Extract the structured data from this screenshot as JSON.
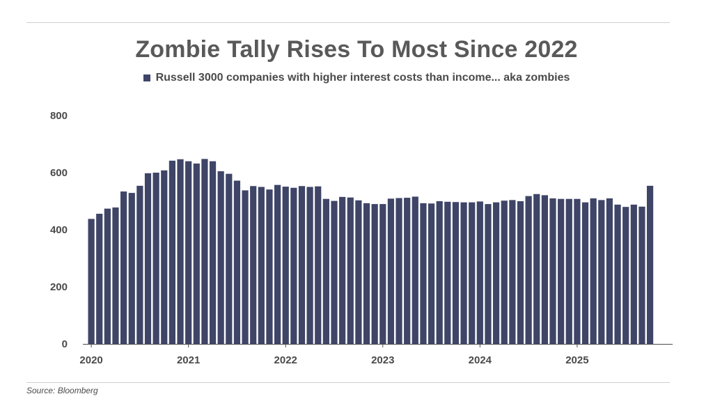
{
  "colors": {
    "bar": "#3f4567",
    "axis": "#4a4a4a",
    "rule": "#cfcfcf"
  },
  "source_label": "Source: Bloomberg",
  "chart_data": {
    "type": "bar",
    "title": "Zombie Tally Rises To Most Since 2022",
    "legend_position": "top-center",
    "grid": false,
    "series": [
      {
        "name": "Russell 3000 companies with higher interest costs than income... aka zombies",
        "values": [
          438,
          456,
          474,
          478,
          534,
          529,
          554,
          598,
          600,
          608,
          642,
          647,
          640,
          632,
          648,
          640,
          605,
          596,
          572,
          538,
          553,
          550,
          541,
          557,
          551,
          547,
          553,
          550,
          552,
          508,
          501,
          515,
          513,
          503,
          493,
          490,
          490,
          509,
          511,
          512,
          516,
          493,
          492,
          500,
          498,
          497,
          496,
          496,
          499,
          490,
          496,
          502,
          504,
          500,
          518,
          525,
          521,
          510,
          508,
          508,
          508,
          496,
          510,
          504,
          510,
          488,
          480,
          488,
          481,
          554
        ]
      }
    ],
    "x_start": "2020-01",
    "x_frequency": "monthly",
    "x_tick_labels": [
      "2020",
      "2021",
      "2022",
      "2023",
      "2024",
      "2025"
    ],
    "y_ticks": [
      0,
      200,
      400,
      600,
      800
    ],
    "ylim": [
      0,
      800
    ],
    "xlabel": "",
    "ylabel": ""
  }
}
